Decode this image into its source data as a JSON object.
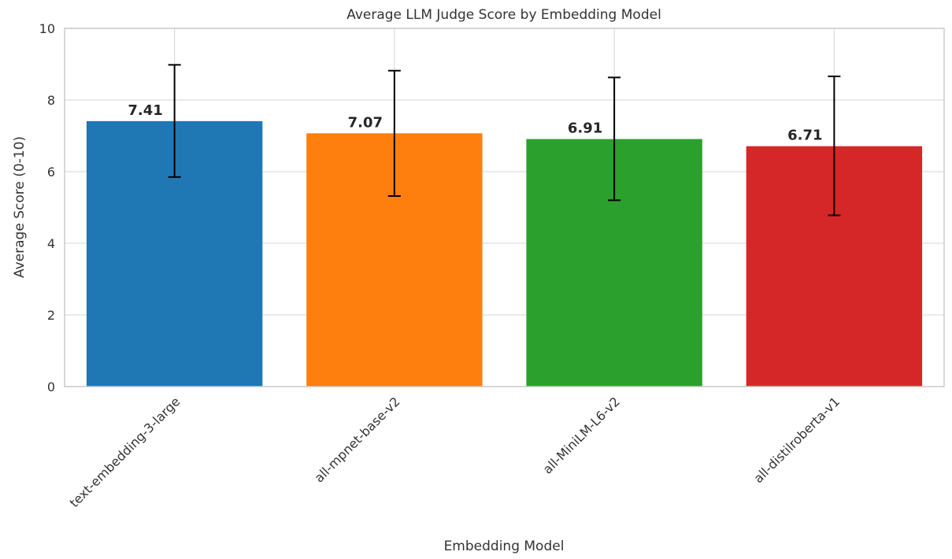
{
  "chart_data": {
    "type": "bar",
    "title": "Average LLM Judge Score by Embedding Model",
    "xlabel": "Embedding Model",
    "ylabel": "Average Score (0-10)",
    "ylim": [
      0,
      10
    ],
    "yticks": [
      0,
      2,
      4,
      6,
      8,
      10
    ],
    "grid": true,
    "categories": [
      "text-embedding-3-large",
      "all-mpnet-base-v2",
      "all-MiniLM-L6-v2",
      "all-distilroberta-v1"
    ],
    "values": [
      7.41,
      7.07,
      6.91,
      6.71
    ],
    "value_labels": [
      "7.41",
      "7.07",
      "6.91",
      "6.71"
    ],
    "error_low": [
      5.85,
      5.32,
      5.2,
      4.78
    ],
    "error_high": [
      8.98,
      8.82,
      8.63,
      8.66
    ],
    "colors": [
      "#1f77b4",
      "#ff7f0e",
      "#2ca02c",
      "#d62728"
    ]
  }
}
